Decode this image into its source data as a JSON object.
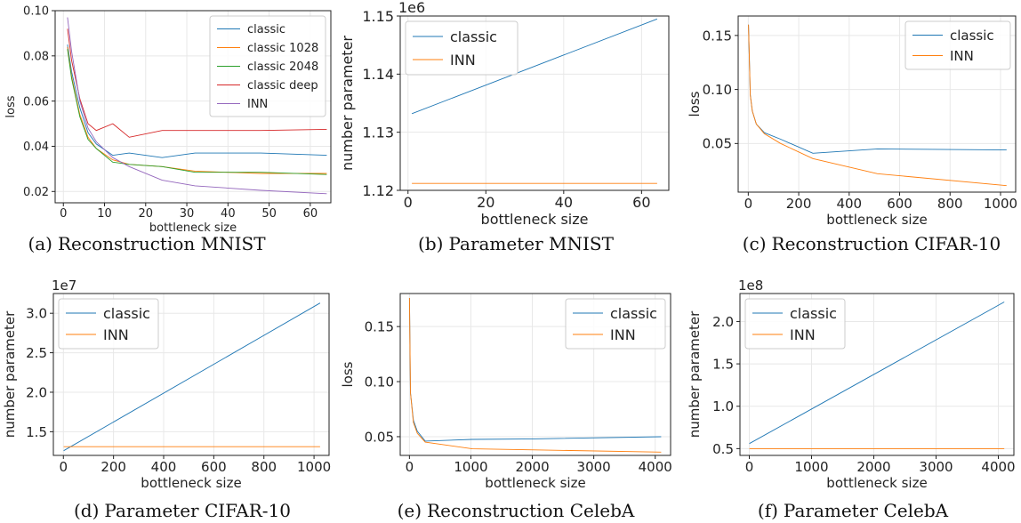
{
  "colors": {
    "series": [
      "#1f77b4",
      "#ff7f0e",
      "#2ca02c",
      "#d62728",
      "#9467bd"
    ],
    "grid": "#e8e8e8",
    "axis": "#222222"
  },
  "chart_data": [
    {
      "id": "a",
      "type": "line",
      "caption_label": "(a)",
      "caption": "Reconstruction MNIST",
      "xlabel": "bottleneck size",
      "ylabel": "loss",
      "offset_text": "",
      "xlim": [
        -2,
        65
      ],
      "ylim": [
        0.015,
        0.1
      ],
      "xticks": [
        0,
        10,
        20,
        30,
        40,
        50,
        60
      ],
      "xtick_labels": [
        "0",
        "10",
        "20",
        "30",
        "40",
        "50",
        "60"
      ],
      "yticks": [
        0.02,
        0.04,
        0.06,
        0.08,
        0.1
      ],
      "ytick_labels": [
        "0.02",
        "0.04",
        "0.06",
        "0.08",
        "0.10"
      ],
      "legend": "top-right",
      "grid": true,
      "series": [
        {
          "name": "classic",
          "x": [
            1,
            2,
            4,
            6,
            8,
            12,
            16,
            24,
            32,
            48,
            64
          ],
          "y": [
            0.085,
            0.073,
            0.057,
            0.046,
            0.041,
            0.036,
            0.037,
            0.035,
            0.037,
            0.037,
            0.036
          ]
        },
        {
          "name": "classic 1028",
          "x": [
            1,
            2,
            4,
            6,
            8,
            12,
            16,
            24,
            32,
            48,
            64
          ],
          "y": [
            0.084,
            0.071,
            0.054,
            0.044,
            0.039,
            0.034,
            0.032,
            0.031,
            0.029,
            0.028,
            0.028
          ]
        },
        {
          "name": "classic 2048",
          "x": [
            1,
            2,
            4,
            6,
            8,
            12,
            16,
            24,
            32,
            48,
            64
          ],
          "y": [
            0.083,
            0.07,
            0.053,
            0.043,
            0.039,
            0.033,
            0.032,
            0.031,
            0.0285,
            0.0285,
            0.0275
          ]
        },
        {
          "name": "classic deep",
          "x": [
            1,
            2,
            4,
            6,
            8,
            12,
            16,
            24,
            32,
            48,
            64
          ],
          "y": [
            0.092,
            0.078,
            0.061,
            0.05,
            0.047,
            0.05,
            0.044,
            0.047,
            0.047,
            0.047,
            0.0475
          ]
        },
        {
          "name": "INN",
          "x": [
            1,
            2,
            4,
            6,
            8,
            12,
            16,
            24,
            32,
            48,
            64
          ],
          "y": [
            0.097,
            0.082,
            0.06,
            0.048,
            0.042,
            0.035,
            0.031,
            0.025,
            0.0225,
            0.0205,
            0.019
          ]
        }
      ]
    },
    {
      "id": "b",
      "type": "line",
      "caption_label": "(b)",
      "caption": "Parameter MNIST",
      "xlabel": "bottleneck size",
      "ylabel": "number parameter",
      "offset_text": "1e6",
      "xlim": [
        -2,
        67
      ],
      "ylim": [
        1.12,
        1.15
      ],
      "xticks": [
        0,
        20,
        40,
        60
      ],
      "xtick_labels": [
        "0",
        "20",
        "40",
        "60"
      ],
      "yticks": [
        1.12,
        1.13,
        1.14,
        1.15
      ],
      "ytick_labels": [
        "1.12",
        "1.13",
        "1.14",
        "1.15"
      ],
      "legend": "top-left",
      "grid": true,
      "series": [
        {
          "name": "classic",
          "x": [
            1,
            64
          ],
          "y": [
            1.1332,
            1.1495
          ]
        },
        {
          "name": "INN",
          "x": [
            1,
            64
          ],
          "y": [
            1.1212,
            1.1212
          ]
        }
      ]
    },
    {
      "id": "c",
      "type": "line",
      "caption_label": "(c)",
      "caption": "Reconstruction CIFAR-10",
      "xlabel": "bottleneck size",
      "ylabel": "loss",
      "offset_text": "",
      "xlim": [
        -40,
        1060
      ],
      "ylim": [
        0.005,
        0.168
      ],
      "xticks": [
        0,
        200,
        400,
        600,
        800,
        1000
      ],
      "xtick_labels": [
        "0",
        "200",
        "400",
        "600",
        "800",
        "1000"
      ],
      "yticks": [
        0.05,
        0.1,
        0.15
      ],
      "ytick_labels": [
        "0.05",
        "0.10",
        "0.15"
      ],
      "legend": "top-right",
      "grid": true,
      "series": [
        {
          "name": "classic",
          "x": [
            1,
            8,
            16,
            32,
            64,
            128,
            256,
            512,
            1024
          ],
          "y": [
            0.16,
            0.095,
            0.08,
            0.068,
            0.06,
            0.054,
            0.041,
            0.045,
            0.044
          ]
        },
        {
          "name": "INN",
          "x": [
            1,
            8,
            16,
            32,
            64,
            128,
            256,
            512,
            1024
          ],
          "y": [
            0.16,
            0.095,
            0.08,
            0.068,
            0.059,
            0.05,
            0.036,
            0.022,
            0.011
          ]
        }
      ]
    },
    {
      "id": "d",
      "type": "line",
      "caption_label": "(d)",
      "caption": "Parameter CIFAR-10",
      "xlabel": "bottleneck size",
      "ylabel": "number parameter",
      "offset_text": "1e7",
      "xlim": [
        -40,
        1060
      ],
      "ylim": [
        1.2,
        3.25
      ],
      "xticks": [
        0,
        200,
        400,
        600,
        800,
        1000
      ],
      "xtick_labels": [
        "0",
        "200",
        "400",
        "600",
        "800",
        "1000"
      ],
      "yticks": [
        1.5,
        2.0,
        2.5,
        3.0
      ],
      "ytick_labels": [
        "1.5",
        "2.0",
        "2.5",
        "3.0"
      ],
      "legend": "top-left",
      "grid": true,
      "series": [
        {
          "name": "classic",
          "x": [
            1,
            1024
          ],
          "y": [
            1.26,
            3.13
          ]
        },
        {
          "name": "INN",
          "x": [
            1,
            1024
          ],
          "y": [
            1.31,
            1.31
          ]
        }
      ]
    },
    {
      "id": "e",
      "type": "line",
      "caption_label": "(e)",
      "caption": "Reconstruction CelebA",
      "xlabel": "bottleneck size",
      "ylabel": "loss",
      "offset_text": "",
      "xlim": [
        -150,
        4250
      ],
      "ylim": [
        0.033,
        0.18
      ],
      "xticks": [
        0,
        1000,
        2000,
        3000,
        4000
      ],
      "xtick_labels": [
        "0",
        "1000",
        "2000",
        "3000",
        "4000"
      ],
      "yticks": [
        0.05,
        0.1,
        0.15
      ],
      "ytick_labels": [
        "0.05",
        "0.10",
        "0.15"
      ],
      "legend": "top-right",
      "grid": true,
      "series": [
        {
          "name": "classic",
          "x": [
            1,
            16,
            64,
            128,
            256,
            1024,
            2048,
            4096
          ],
          "y": [
            0.176,
            0.09,
            0.065,
            0.055,
            0.046,
            0.0475,
            0.048,
            0.05
          ]
        },
        {
          "name": "INN",
          "x": [
            1,
            16,
            64,
            128,
            256,
            1024,
            2048,
            4096
          ],
          "y": [
            0.176,
            0.09,
            0.063,
            0.053,
            0.045,
            0.039,
            0.038,
            0.036
          ]
        }
      ]
    },
    {
      "id": "f",
      "type": "line",
      "caption_label": "(f)",
      "caption": "Parameter CelebA",
      "xlabel": "bottleneck size",
      "ylabel": "number parameter",
      "offset_text": "1e8",
      "xlim": [
        -150,
        4250
      ],
      "ylim": [
        0.42,
        2.33
      ],
      "xticks": [
        0,
        1000,
        2000,
        3000,
        4000
      ],
      "xtick_labels": [
        "0",
        "1000",
        "2000",
        "3000",
        "4000"
      ],
      "yticks": [
        0.5,
        1.0,
        1.5,
        2.0
      ],
      "ytick_labels": [
        "0.5",
        "1.0",
        "1.5",
        "2.0"
      ],
      "legend": "top-left",
      "grid": true,
      "series": [
        {
          "name": "classic",
          "x": [
            1,
            4096
          ],
          "y": [
            0.56,
            2.23
          ]
        },
        {
          "name": "INN",
          "x": [
            1,
            4096
          ],
          "y": [
            0.5,
            0.5
          ]
        }
      ]
    }
  ]
}
